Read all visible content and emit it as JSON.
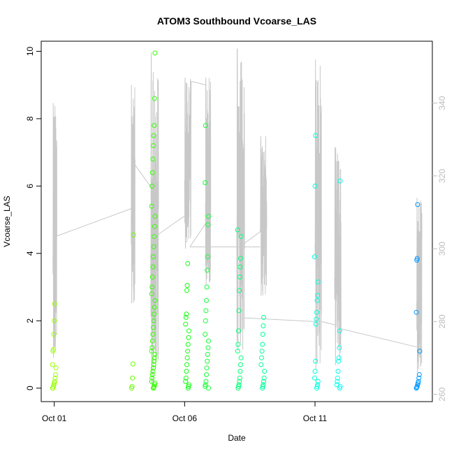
{
  "chart_data": {
    "type": "scatter",
    "title": "ATOM3 Southbound Vcoarse_LAS",
    "xlabel": "Date",
    "ylabel": "Vcoarse_LAS",
    "x_ticks": [
      "Oct 01",
      "Oct 06",
      "Oct 11"
    ],
    "x_tick_days": [
      1,
      6,
      11
    ],
    "xlim": [
      0.5,
      15.5
    ],
    "ylim": [
      -0.4,
      10.3
    ],
    "y_ticks": [
      0,
      2,
      4,
      6,
      8,
      10
    ],
    "y2lim": [
      258,
      357
    ],
    "y2_ticks": [
      260,
      280,
      300,
      320,
      340
    ],
    "grid": false,
    "line_color": "#c8c8c8",
    "point_series": [
      {
        "day": 1.0,
        "color": "#99ff00",
        "values": [
          0,
          0,
          0.05,
          0.1,
          0.15,
          0.2,
          0.3,
          0.4,
          0.6,
          0.7,
          1.1,
          1.15,
          1.6,
          2.0,
          2.5
        ]
      },
      {
        "day": 4.0,
        "color": "#66ff00",
        "values": [
          0,
          0.05,
          0.3,
          0.72,
          4.55
        ]
      },
      {
        "day": 4.8,
        "color": "#33ff00",
        "values": [
          0,
          0.02,
          0.05,
          0.1,
          0.15,
          0.2,
          0.3,
          0.4,
          0.5,
          0.6,
          0.7,
          0.8,
          0.9,
          1.0,
          1.1,
          1.2,
          1.4,
          1.6,
          1.8,
          2.0,
          2.2,
          2.4,
          2.6,
          2.8,
          3.0,
          3.3,
          3.6,
          3.9,
          4.2,
          4.5,
          4.8,
          5.1,
          5.4,
          6.0,
          6.4,
          6.8,
          7.2,
          7.5,
          7.8,
          8.6,
          9.95
        ]
      },
      {
        "day": 6.1,
        "color": "#11ff11",
        "values": [
          0,
          0.05,
          0.1,
          0.2,
          0.3,
          0.5,
          0.7,
          0.9,
          1.1,
          1.3,
          1.5,
          1.7,
          1.9,
          2.1,
          2.2,
          2.9,
          3.05,
          3.7
        ]
      },
      {
        "day": 6.85,
        "color": "#11ff33",
        "values": [
          0,
          0.05,
          0.1,
          0.2,
          0.4,
          0.6,
          0.8,
          1.0,
          1.2,
          1.4,
          1.6,
          2.0,
          2.3,
          2.6,
          3.0,
          3.5,
          3.9,
          4.85,
          5.1,
          6.1,
          7.8
        ]
      },
      {
        "day": 8.1,
        "color": "#00ff77",
        "values": [
          0,
          0.05,
          0.1,
          0.2,
          0.3,
          0.5,
          0.7,
          0.9,
          1.1,
          1.3,
          1.7,
          2.3,
          2.9,
          3.3,
          3.6,
          3.85,
          4.5,
          4.7
        ]
      },
      {
        "day": 9.0,
        "color": "#00ff99",
        "values": [
          0,
          0.05,
          0.1,
          0.2,
          0.3,
          0.5,
          0.7,
          0.9,
          1.1,
          1.3,
          1.6,
          1.85,
          2.1
        ]
      },
      {
        "day": 11.05,
        "color": "#00ffdd",
        "values": [
          0,
          0.05,
          0.1,
          0.2,
          0.3,
          0.5,
          0.8,
          1.9,
          2.05,
          2.25,
          2.6,
          2.75,
          3.15,
          3.9,
          6.0,
          7.5
        ]
      },
      {
        "day": 11.9,
        "color": "#00ffee",
        "values": [
          0,
          0.05,
          0.1,
          0.2,
          0.3,
          0.5,
          0.8,
          0.9,
          1.2,
          1.7,
          6.15
        ]
      },
      {
        "day": 14.95,
        "color": "#0099ff",
        "values": [
          0,
          0.02,
          0.05,
          0.1,
          0.15,
          0.2,
          0.3,
          0.4,
          1.1,
          2.25,
          3.8,
          3.85,
          5.45
        ]
      }
    ],
    "secondary_line_segments": [
      {
        "day_start": 0.95,
        "day_end": 1.1,
        "min": 270,
        "max": 340,
        "end": 303.5
      },
      {
        "day_start": 3.95,
        "day_end": 4.1,
        "min": 285,
        "max": 345,
        "end": 323
      },
      {
        "day_start": 4.7,
        "day_end": 5.0,
        "min": 262,
        "max": 354,
        "end": 311
      },
      {
        "day_start": 6.0,
        "day_end": 6.25,
        "min": 300,
        "max": 347,
        "end": 346
      },
      {
        "day_start": 6.8,
        "day_end": 7.0,
        "min": 290,
        "max": 347,
        "end": 309
      },
      {
        "day_start": 8.0,
        "day_end": 8.3,
        "min": 272,
        "max": 355,
        "end": 300
      },
      {
        "day_start": 8.9,
        "day_end": 9.15,
        "min": 287,
        "max": 331,
        "end": 306
      },
      {
        "day_start": 11.0,
        "day_end": 11.25,
        "min": 267,
        "max": 352,
        "end": 282
      },
      {
        "day_start": 11.75,
        "day_end": 12.0,
        "min": 268,
        "max": 328,
        "end": 278
      },
      {
        "day_start": 14.9,
        "day_end": 15.1,
        "min": 266,
        "max": 314,
        "end": 303
      }
    ],
    "secondary_line_connectors": [
      {
        "day1": 1.1,
        "val1": 303.5,
        "day2": 3.95,
        "val2": 311
      },
      {
        "day1": 4.1,
        "val1": 323,
        "day2": 4.7,
        "val2": 317
      },
      {
        "day1": 5.0,
        "val1": 304,
        "day2": 6.0,
        "val2": 309
      },
      {
        "day1": 6.25,
        "val1": 346,
        "day2": 6.8,
        "val2": 345
      },
      {
        "day1": 7.0,
        "val1": 309,
        "day2": 6.2,
        "val2": 300.5
      },
      {
        "day1": 6.2,
        "val1": 300.5,
        "day2": 8.9,
        "val2": 300.5
      },
      {
        "day1": 9.15,
        "val1": 306,
        "day2": 8.2,
        "val2": 301
      },
      {
        "day1": 8.3,
        "val1": 281,
        "day2": 11.0,
        "val2": 280
      },
      {
        "day1": 11.25,
        "val1": 280,
        "day2": 11.8,
        "val2": 279
      },
      {
        "day1": 12.0,
        "val1": 278,
        "day2": 14.9,
        "val2": 273
      }
    ]
  }
}
